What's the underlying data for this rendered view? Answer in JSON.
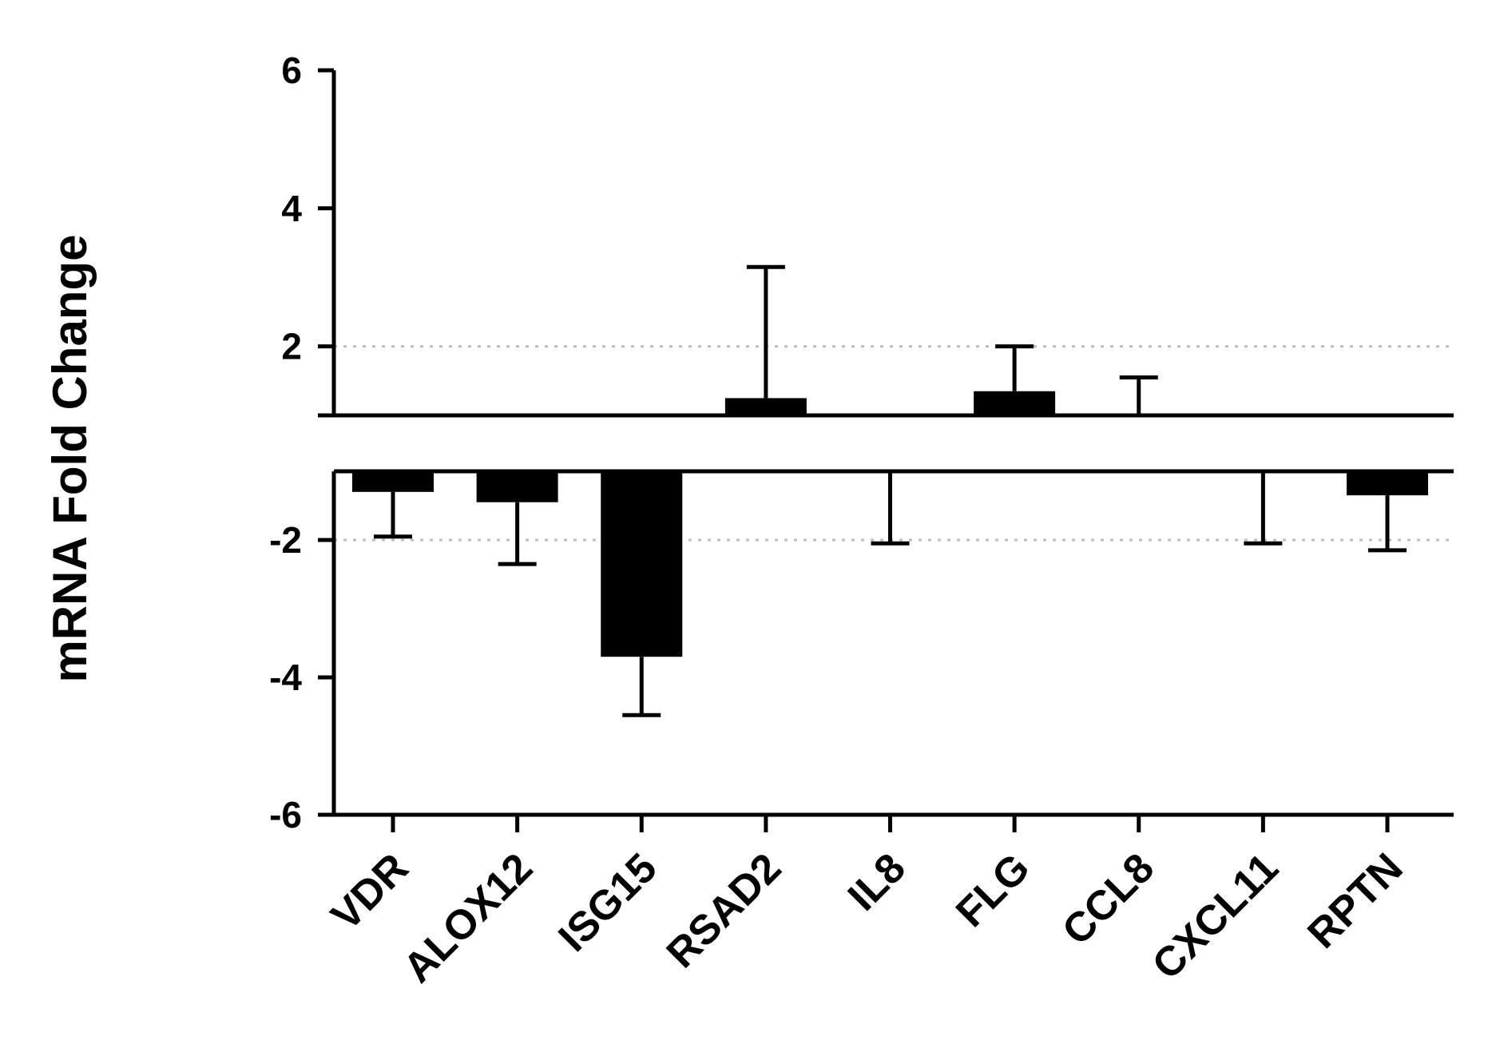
{
  "chart_data": {
    "type": "bar",
    "ylabel": "mRNA Fold Change",
    "xlabel": "",
    "title": "",
    "ylim": [
      -6,
      6
    ],
    "yticks": [
      6,
      4,
      2,
      -2,
      -4,
      -6
    ],
    "axis_break": true,
    "upper_baseline": 1,
    "lower_baseline": -1,
    "reference_lines": [
      2,
      -2
    ],
    "grid": false,
    "legend": "none",
    "bar_color": "#000000",
    "categories": [
      "VDR",
      "ALOX12",
      "ISG15",
      "RSAD2",
      "IL8",
      "FLG",
      "CCL8",
      "CXCL11",
      "RPTN"
    ],
    "values": [
      -1.3,
      -1.45,
      -3.7,
      1.25,
      -1.0,
      1.35,
      1.0,
      -1.0,
      -1.35
    ],
    "error": [
      0.65,
      0.9,
      0.85,
      1.9,
      1.05,
      0.65,
      0.55,
      1.05,
      0.8
    ]
  }
}
